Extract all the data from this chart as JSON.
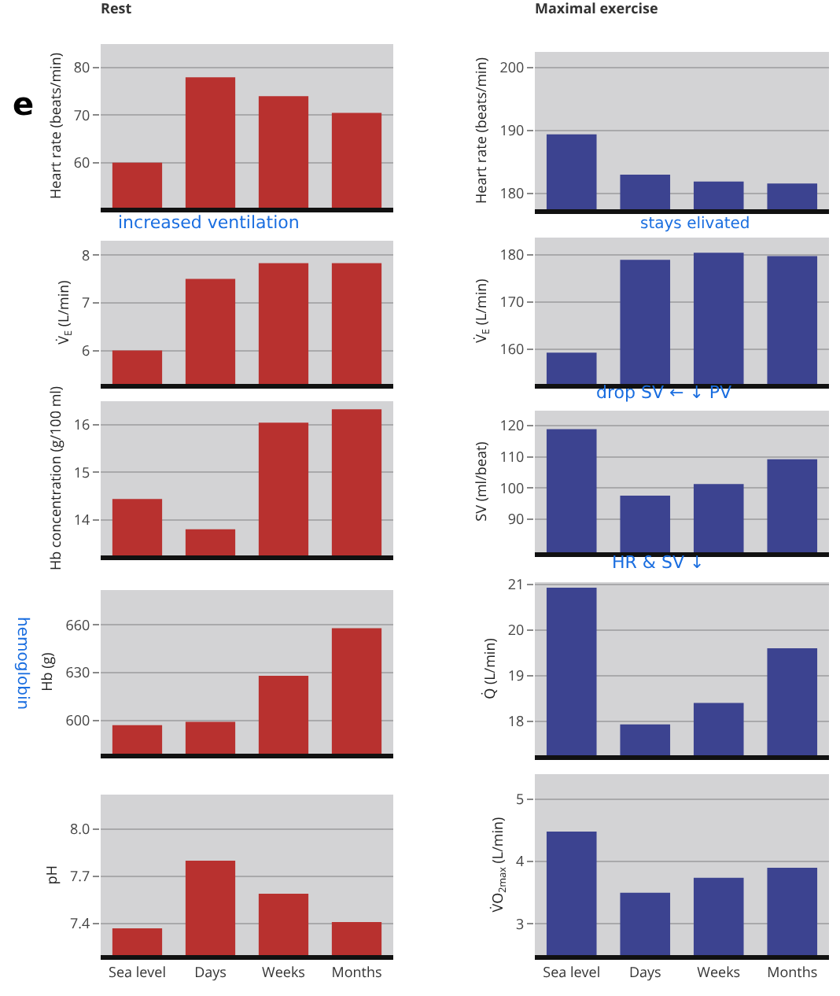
{
  "chart_data": [
    {
      "type": "bar",
      "title": "Rest",
      "ylabel": "Heart rate (beats/min)",
      "categories": [
        null,
        null,
        null,
        null
      ],
      "values": [
        60,
        78,
        74,
        70.5
      ],
      "color": "#b8312f",
      "ylim": [
        50.5,
        85
      ],
      "yticks": [
        60,
        70,
        80
      ],
      "grid": "y",
      "tick_labels": "y",
      "annotations": [
        "e"
      ]
    },
    {
      "type": "bar",
      "title": "Maximal exercise",
      "ylabel": "Heart rate (beats/min)",
      "categories": [
        null,
        null,
        null,
        null
      ],
      "values": [
        189.4,
        183,
        181.9,
        181.6
      ],
      "color": "#3c4390",
      "ylim": [
        177.5,
        202.5
      ],
      "yticks": [
        180,
        190,
        200
      ],
      "grid": "y",
      "tick_labels": "y"
    },
    {
      "type": "bar",
      "ylabel": "V̇$_{E}$ (L/min)",
      "categories": [
        null,
        null,
        null,
        null
      ],
      "values": [
        6.0,
        7.5,
        7.83,
        7.83
      ],
      "color": "#b8312f",
      "ylim": [
        5.3,
        8.3
      ],
      "yticks": [
        6,
        7,
        8
      ],
      "grid": "y",
      "tick_labels": "y",
      "annotations": [
        "increased ventilation"
      ]
    },
    {
      "type": "bar",
      "ylabel": "V̇$_{E}$ (L/min)",
      "categories": [
        null,
        null,
        null,
        null
      ],
      "values": [
        159.3,
        178.9,
        180.4,
        179.7
      ],
      "color": "#3c4390",
      "ylim": [
        152.7,
        183.6
      ],
      "yticks": [
        160,
        170,
        180
      ],
      "grid": "y",
      "tick_labels": "y",
      "annotations": [
        "stays elivated"
      ]
    },
    {
      "type": "bar",
      "ylabel": "Hb concentration (g/100 ml)",
      "categories": [
        null,
        null,
        null,
        null
      ],
      "values": [
        14.44,
        13.8,
        16.05,
        16.33
      ],
      "color": "#b8312f",
      "ylim": [
        13.25,
        16.5
      ],
      "yticks": [
        14,
        15,
        16
      ],
      "grid": "y",
      "tick_labels": "y"
    },
    {
      "type": "bar",
      "ylabel": "SV (ml/beat)",
      "categories": [
        null,
        null,
        null,
        null
      ],
      "values": [
        118.8,
        97.6,
        101.3,
        109.2
      ],
      "color": "#3c4390",
      "ylim": [
        79.5,
        124.7
      ],
      "yticks": [
        90,
        100,
        110,
        120
      ],
      "grid": "y",
      "tick_labels": "y",
      "annotations": [
        "drop SV ← ↓ PV"
      ]
    },
    {
      "type": "bar",
      "ylabel": "Hb (g)",
      "categories": [
        null,
        null,
        null,
        null
      ],
      "values": [
        597,
        599,
        628,
        658
      ],
      "color": "#b8312f",
      "ylim": [
        579,
        682
      ],
      "yticks": [
        600,
        630,
        660
      ],
      "grid": "y",
      "tick_labels": "y",
      "annotations": [
        "hemoglobin"
      ]
    },
    {
      "type": "bar",
      "ylabel": "Q̇ (L/min)",
      "categories": [
        null,
        null,
        null,
        null
      ],
      "values": [
        20.93,
        17.93,
        18.4,
        19.6
      ],
      "color": "#3c4390",
      "ylim": [
        17.25,
        21.05
      ],
      "yticks": [
        18,
        19,
        20,
        21
      ],
      "grid": "y",
      "tick_labels": "y",
      "annotations": [
        "HR & SV ↓"
      ]
    },
    {
      "type": "bar",
      "ylabel": "pH",
      "categories": [
        "Sea level",
        "Days",
        "Weeks",
        "Months"
      ],
      "values": [
        7.37,
        7.8,
        7.59,
        7.41
      ],
      "color": "#b8312f",
      "ylim": [
        7.2,
        8.22
      ],
      "yticks": [
        {
          "value": 7.4,
          "label": "7.4"
        },
        {
          "value": 7.7,
          "label": "7.7"
        },
        {
          "value": 8.0,
          "label": "8.0"
        }
      ],
      "grid": "y"
    },
    {
      "type": "bar",
      "ylabel": "V̇O$_{2max}$ (L/min)",
      "categories": [
        "Sea level",
        "Days",
        "Weeks",
        "Months"
      ],
      "values": [
        4.48,
        3.5,
        3.74,
        3.9
      ],
      "color": "#3c4390",
      "ylim": [
        2.5,
        5.4
      ],
      "yticks": [
        3,
        4,
        5
      ],
      "grid": "y"
    }
  ]
}
